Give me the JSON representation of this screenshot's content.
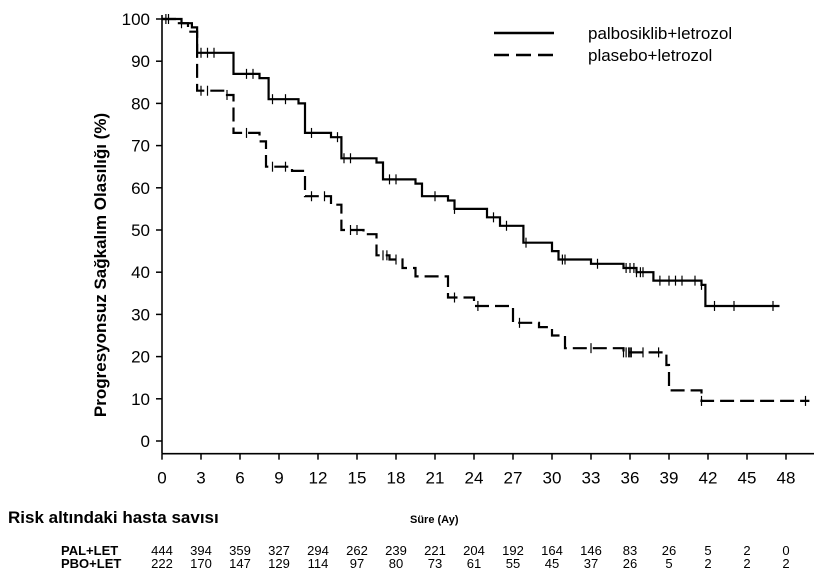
{
  "chart_data": {
    "type": "line",
    "ylabel": "Progresyonsuz Sağkalım Olasılığı (%)",
    "xlabel": "Süre (Ay)",
    "xlim": [
      0,
      50
    ],
    "ylim": [
      -3,
      102
    ],
    "x_ticks": [
      "0",
      "3",
      "6",
      "9",
      "12",
      "15",
      "18",
      "21",
      "24",
      "27",
      "30",
      "33",
      "36",
      "39",
      "42",
      "45",
      "48"
    ],
    "y_ticks": [
      "0",
      "10",
      "20",
      "30",
      "40",
      "50",
      "60",
      "70",
      "80",
      "90",
      "100"
    ],
    "legend_position": "top-right",
    "series": [
      {
        "name": "palbosiklib+letrozol",
        "style": "solid",
        "points": [
          [
            0,
            100
          ],
          [
            1.5,
            99
          ],
          [
            2.3,
            98
          ],
          [
            2.7,
            92
          ],
          [
            5,
            92
          ],
          [
            5.5,
            87
          ],
          [
            7.5,
            86
          ],
          [
            8.2,
            81
          ],
          [
            10.5,
            80
          ],
          [
            11,
            73
          ],
          [
            13,
            72
          ],
          [
            13.8,
            67
          ],
          [
            16.5,
            66
          ],
          [
            17,
            62
          ],
          [
            19.5,
            61
          ],
          [
            20,
            58
          ],
          [
            22,
            57
          ],
          [
            22.5,
            55
          ],
          [
            25,
            53
          ],
          [
            26,
            51
          ],
          [
            27.5,
            51
          ],
          [
            27.8,
            47
          ],
          [
            30,
            45
          ],
          [
            30.5,
            43
          ],
          [
            33,
            42
          ],
          [
            35.5,
            41
          ],
          [
            36.5,
            40
          ],
          [
            37.8,
            38
          ],
          [
            41.5,
            37
          ],
          [
            41.8,
            32
          ],
          [
            47.5,
            32
          ]
        ],
        "censor_x": [
          0.5,
          3,
          3.5,
          4,
          6.5,
          7,
          8.5,
          9.5,
          11.5,
          13.5,
          14,
          14.5,
          17.5,
          18,
          21,
          22.5,
          25.5,
          26.5,
          28,
          30.8,
          31,
          33.5,
          35.7,
          36,
          36.3,
          36.5,
          36.8,
          37,
          38.3,
          39,
          39.5,
          40,
          41,
          41.5,
          42.5,
          44,
          47
        ]
      },
      {
        "name": "plasebo+letrozol",
        "style": "dashed",
        "points": [
          [
            0,
            100
          ],
          [
            1.2,
            99
          ],
          [
            2,
            97
          ],
          [
            2.7,
            83
          ],
          [
            5,
            82
          ],
          [
            5.5,
            73
          ],
          [
            7.5,
            71
          ],
          [
            8,
            65
          ],
          [
            10,
            64
          ],
          [
            11,
            58
          ],
          [
            13,
            56
          ],
          [
            13.8,
            50
          ],
          [
            15.5,
            49
          ],
          [
            16.5,
            44
          ],
          [
            17.5,
            43
          ],
          [
            18.5,
            41
          ],
          [
            19.5,
            39
          ],
          [
            21.5,
            39
          ],
          [
            22,
            34
          ],
          [
            24,
            32
          ],
          [
            26.5,
            32
          ],
          [
            27,
            28
          ],
          [
            29,
            27
          ],
          [
            30,
            25
          ],
          [
            31,
            22
          ],
          [
            35.5,
            21
          ],
          [
            38.5,
            21
          ],
          [
            38.8,
            18
          ],
          [
            39,
            12
          ],
          [
            41.3,
            12
          ],
          [
            41.5,
            9.5
          ],
          [
            49.8,
            9.5
          ]
        ],
        "censor_x": [
          0.3,
          1.5,
          3,
          3.5,
          5,
          6.5,
          8.5,
          9.5,
          11.5,
          12.5,
          14.5,
          15,
          17,
          17.3,
          18,
          22.5,
          24.3,
          27.5,
          33,
          35.5,
          35.7,
          35.9,
          36,
          36.1,
          37,
          38.2,
          41.5,
          49.5
        ]
      }
    ],
    "risk_table": {
      "title": "Risk altındaki hasta savısı",
      "rows": [
        {
          "label": "PAL+LET",
          "values": [
            "444",
            "394",
            "359",
            "327",
            "294",
            "262",
            "239",
            "221",
            "204",
            "192",
            "164",
            "146",
            "83",
            "26",
            "5",
            "2",
            "0"
          ]
        },
        {
          "label": "PBO+LET",
          "values": [
            "222",
            "170",
            "147",
            "129",
            "114",
            "97",
            "80",
            "73",
            "61",
            "55",
            "45",
            "37",
            "26",
            "5",
            "2",
            "2",
            "2"
          ]
        }
      ]
    }
  }
}
